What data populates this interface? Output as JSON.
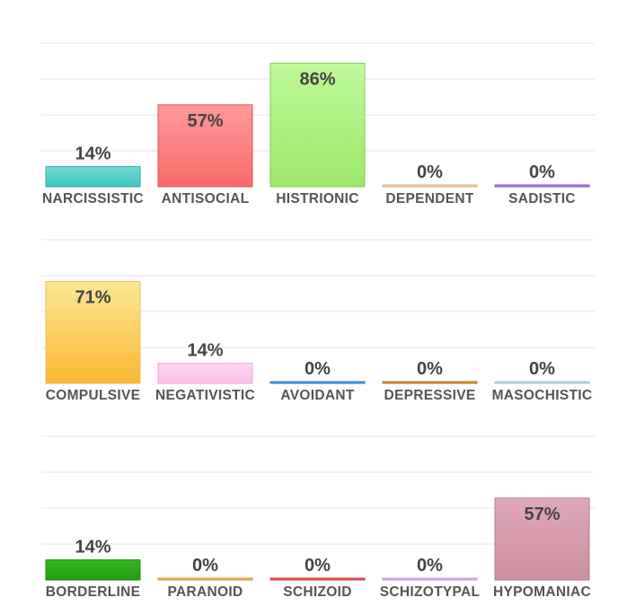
{
  "chart_data": [
    {
      "type": "bar",
      "categories": [
        "NARCISSISTIC",
        "ANTISOCIAL",
        "HISTRIONIC",
        "DEPENDENT",
        "SADISTIC"
      ],
      "values": [
        14,
        57,
        86,
        0,
        0
      ],
      "value_labels": [
        "14%",
        "57%",
        "86%",
        "0%",
        "0%"
      ],
      "ylim": [
        0,
        100
      ],
      "grid": true,
      "colors": [
        {
          "top": "#6fdcd6",
          "bottom": "#3fc4bb",
          "stroke": "#35a9a1"
        },
        {
          "top": "#ff9a9a",
          "bottom": "#f86a6a",
          "stroke": "#d95454"
        },
        {
          "top": "#bff99a",
          "bottom": "#9be86a",
          "stroke": "#82cf55"
        },
        {
          "top": "#f4dcc0",
          "bottom": "#e9c49a",
          "stroke": "#d9b07a"
        },
        {
          "top": "#b48cf0",
          "bottom": "#9a66e6",
          "stroke": "#8a55d8"
        }
      ]
    },
    {
      "type": "bar",
      "categories": [
        "COMPULSIVE",
        "NEGATIVISTIC",
        "AVOIDANT",
        "DEPRESSIVE",
        "MASOCHISTIC"
      ],
      "values": [
        71,
        14,
        0,
        0,
        0
      ],
      "value_labels": [
        "71%",
        "14%",
        "0%",
        "0%",
        "0%"
      ],
      "ylim": [
        0,
        100
      ],
      "grid": true,
      "colors": [
        {
          "top": "#fbe795",
          "bottom": "#fbb733",
          "stroke": "#e6c25a"
        },
        {
          "top": "#ffd4f0",
          "bottom": "#fbbfe8",
          "stroke": "#f0a6d8"
        },
        {
          "top": "#5aa9e6",
          "bottom": "#3b8fd6",
          "stroke": "#2f7fc4"
        },
        {
          "top": "#e0a64a",
          "bottom": "#c98a2e",
          "stroke": "#b87a22"
        },
        {
          "top": "#d6eaf0",
          "bottom": "#b8d6e0",
          "stroke": "#a4c6d2"
        }
      ]
    },
    {
      "type": "bar",
      "categories": [
        "BORDERLINE",
        "PARANOID",
        "SCHIZOID",
        "SCHIZOTYPAL",
        "HYPOMANIAC"
      ],
      "values": [
        14,
        0,
        0,
        0,
        57
      ],
      "value_labels": [
        "14%",
        "0%",
        "0%",
        "0%",
        "57%"
      ],
      "ylim": [
        0,
        100
      ],
      "grid": true,
      "colors": [
        {
          "top": "#35b51f",
          "bottom": "#22a010",
          "stroke": "#1c8a0c"
        },
        {
          "top": "#ffc070",
          "bottom": "#f5a04a",
          "stroke": "#e08e36"
        },
        {
          "top": "#f07070",
          "bottom": "#e04a4a",
          "stroke": "#cc3a3a"
        },
        {
          "top": "#dcc8f0",
          "bottom": "#c8aee6",
          "stroke": "#b89ad8"
        },
        {
          "top": "#dfa8b8",
          "bottom": "#cc8fa0",
          "stroke": "#b87a8c"
        }
      ]
    }
  ]
}
